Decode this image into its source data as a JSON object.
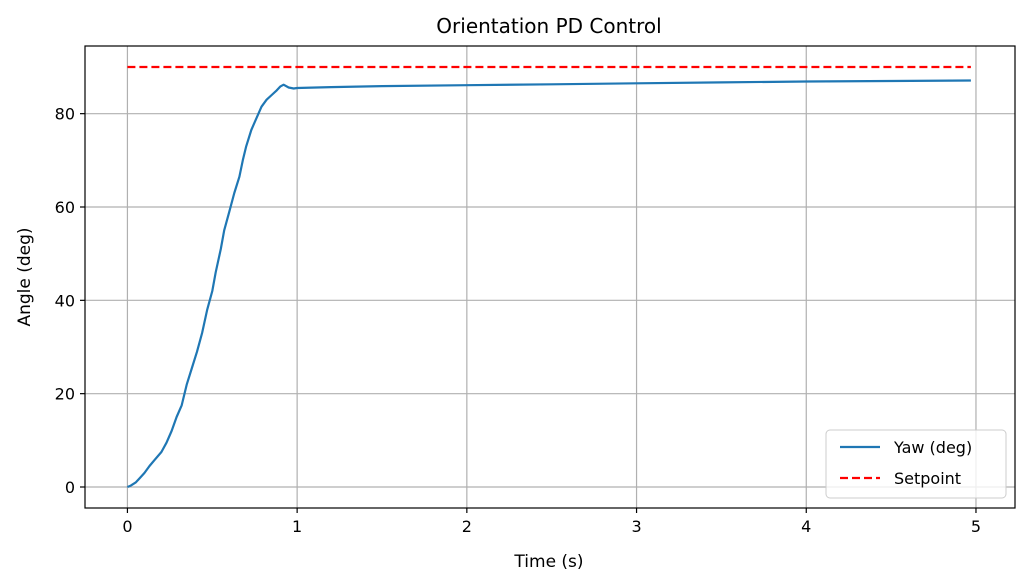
{
  "chart_data": {
    "type": "line",
    "title": "Orientation PD Control",
    "xlabel": "Time (s)",
    "ylabel": "Angle (deg)",
    "xlim": [
      -0.25,
      5.23
    ],
    "ylim": [
      -4.5,
      94.5
    ],
    "xticks": [
      0,
      1,
      2,
      3,
      4,
      5
    ],
    "yticks": [
      0,
      20,
      40,
      60,
      80
    ],
    "xtick_labels": [
      "0",
      "1",
      "2",
      "3",
      "4",
      "5"
    ],
    "ytick_labels": [
      "0",
      "20",
      "40",
      "60",
      "80"
    ],
    "grid": true,
    "legend_position": "lower-right",
    "series": [
      {
        "name": "Yaw (deg)",
        "style": "solid",
        "color": "#1f77b4",
        "x": [
          0,
          0.02,
          0.05,
          0.07,
          0.1,
          0.13,
          0.16,
          0.2,
          0.23,
          0.26,
          0.29,
          0.32,
          0.35,
          0.38,
          0.41,
          0.44,
          0.47,
          0.5,
          0.52,
          0.55,
          0.57,
          0.6,
          0.63,
          0.66,
          0.68,
          0.7,
          0.73,
          0.76,
          0.79,
          0.82,
          0.85,
          0.88,
          0.9,
          0.92,
          0.95,
          0.98,
          1.0,
          1.2,
          1.5,
          2.0,
          2.5,
          3.0,
          3.5,
          4.0,
          4.5,
          4.97
        ],
        "y": [
          0,
          0.3,
          1,
          1.8,
          3,
          4.5,
          5.8,
          7.5,
          9.5,
          12,
          15,
          17.5,
          22,
          25.5,
          29,
          33,
          38,
          42,
          46,
          51,
          55,
          59,
          63,
          66.5,
          70,
          73,
          76.5,
          79,
          81.5,
          83,
          84,
          85,
          85.8,
          86.2,
          85.6,
          85.4,
          85.5,
          85.7,
          85.9,
          86.1,
          86.3,
          86.5,
          86.7,
          86.9,
          87.0,
          87.1
        ]
      },
      {
        "name": "Setpoint",
        "style": "dashed",
        "color": "#ff0000",
        "x": [
          0,
          4.97
        ],
        "y": [
          90,
          90
        ]
      }
    ]
  }
}
